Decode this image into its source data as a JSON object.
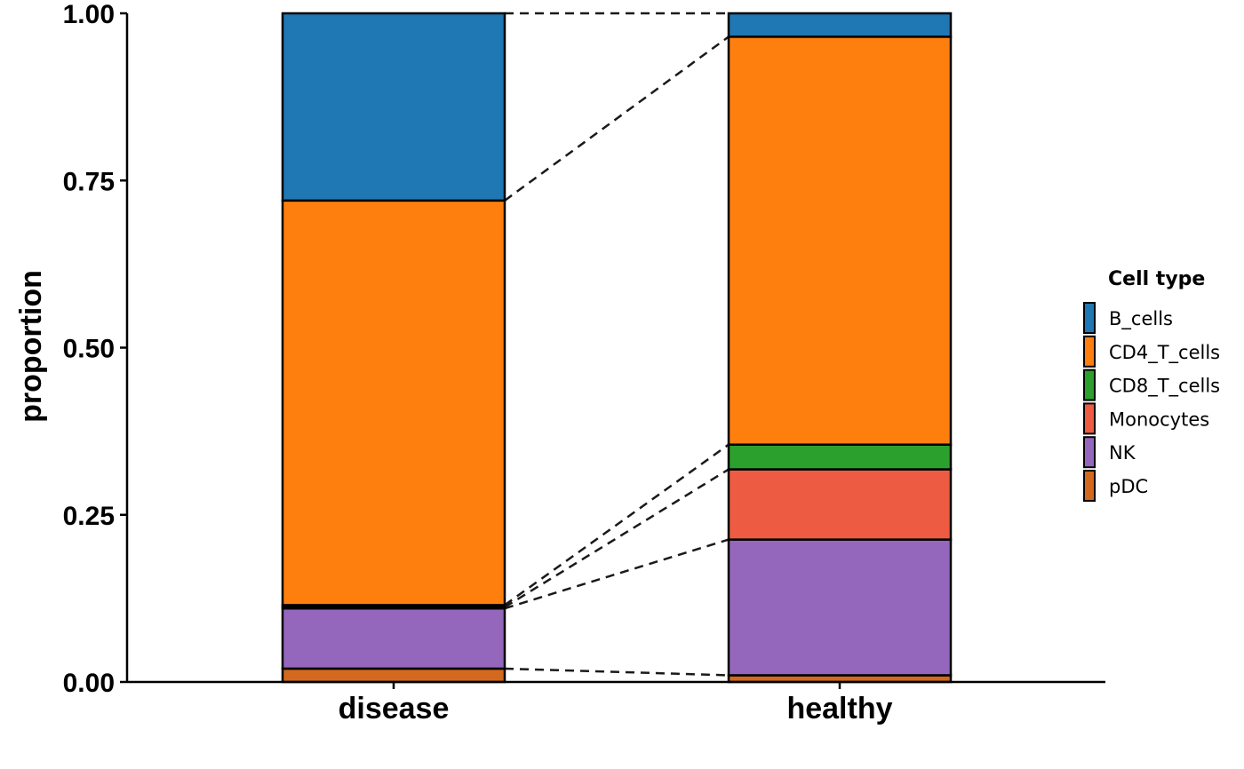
{
  "chart_data": {
    "type": "bar",
    "stacked": true,
    "categories": [
      "disease",
      "healthy"
    ],
    "ylabel": "proportion",
    "xlabel": "",
    "ylim": [
      0,
      1
    ],
    "yticks": [
      "0.00",
      "0.25",
      "0.50",
      "0.75",
      "1.00"
    ],
    "ytick_values": [
      0,
      0.25,
      0.5,
      0.75,
      1.0
    ],
    "legend": {
      "title": "Cell type",
      "position": "right"
    },
    "series": [
      {
        "name": "B_cells",
        "color": "#1f77b4",
        "values": [
          0.28,
          0.035
        ]
      },
      {
        "name": "CD4_T_cells",
        "color": "#ff7f0e",
        "values": [
          0.605,
          0.61
        ]
      },
      {
        "name": "CD8_T_cells",
        "color": "#2ca02c",
        "values": [
          0.003,
          0.037
        ]
      },
      {
        "name": "Monocytes",
        "color": "#ed5c42",
        "values": [
          0.002,
          0.105
        ]
      },
      {
        "name": "NK",
        "color": "#9467bd",
        "values": [
          0.09,
          0.203
        ]
      },
      {
        "name": "pDC",
        "color": "#d2691e",
        "values": [
          0.02,
          0.01
        ]
      }
    ],
    "connectors": "dashed"
  }
}
